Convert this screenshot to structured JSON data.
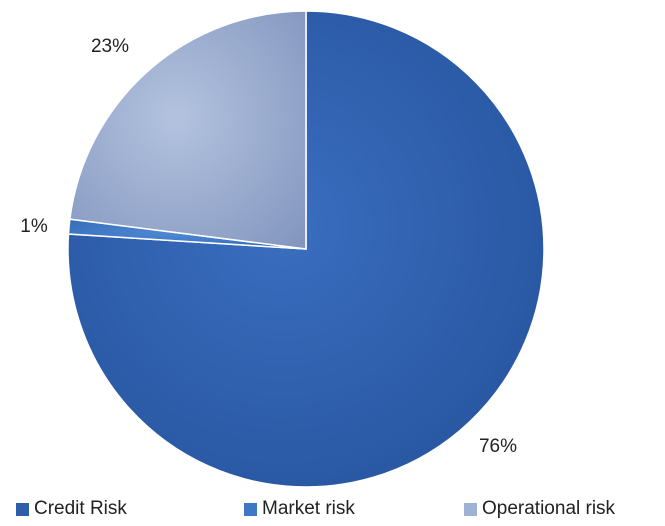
{
  "chart_data": {
    "type": "pie",
    "title": "",
    "categories": [
      "Credit Risk",
      "Market risk",
      "Operational risk"
    ],
    "values": [
      76,
      1,
      23
    ],
    "labels": [
      "76%",
      "1%",
      "23%"
    ],
    "colors": [
      "#2e5ea8",
      "#3e78c4",
      "#9fb2d4"
    ],
    "start_angle_deg": 0,
    "direction": "clockwise",
    "legend": {
      "position": "bottom",
      "entries": [
        "Credit Risk",
        "Market risk",
        "Operational risk"
      ]
    }
  }
}
